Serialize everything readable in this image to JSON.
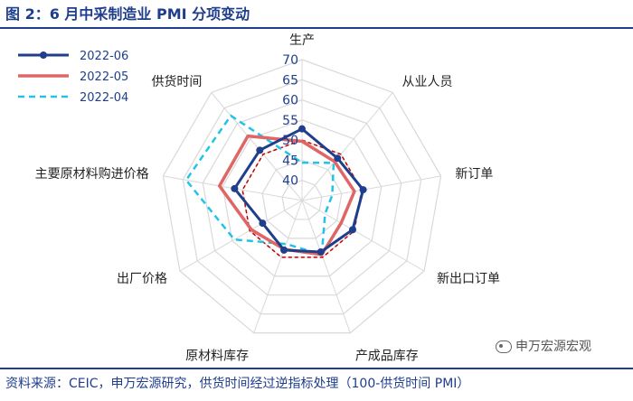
{
  "header": {
    "title": "图 2：6 月中采制造业 PMI 分项变动"
  },
  "footer": {
    "source": "资料来源：CEIC，申万宏源研究，供货时间经过逆指标处理（100-供货时间 PMI）",
    "watermark": "申万宏源宏观"
  },
  "colors": {
    "series_2022_06": "#1f3e8c",
    "series_2022_05": "#e06666",
    "series_2022_04": "#22c3e6",
    "series_benchmark": "#c00000",
    "grid": "#d9d9d9",
    "accent": "#1f3e8c"
  },
  "chart_data": {
    "type": "radar",
    "title": "6 月中采制造业 PMI 分项变动",
    "axes": [
      "生产",
      "从业人员",
      "新订单",
      "新出口订单",
      "产成品库存",
      "原材料库存",
      "出厂价格",
      "主要原材料购进价格",
      "供货时间"
    ],
    "ticks": [
      40,
      45,
      50,
      55,
      60,
      65,
      70
    ],
    "rlim": [
      35,
      70
    ],
    "grid": true,
    "legend_position": "top-left",
    "series": [
      {
        "name": "2022-06",
        "style": "solid-markers",
        "values": [
          52.8,
          48.7,
          50.4,
          49.5,
          48.6,
          48.1,
          46.3,
          52.0,
          51.3
        ]
      },
      {
        "name": "2022-05",
        "style": "solid-thick",
        "values": [
          49.7,
          47.6,
          48.2,
          46.2,
          49.3,
          47.9,
          49.5,
          55.8,
          55.9
        ]
      },
      {
        "name": "2022-04",
        "style": "dashed",
        "values": [
          44.4,
          47.2,
          42.6,
          41.6,
          49.3,
          46.5,
          54.4,
          64.2,
          62.5
        ]
      },
      {
        "name": "",
        "style": "dashed-thin",
        "values": [
          50,
          50,
          50,
          50,
          50,
          50,
          50,
          50,
          50
        ]
      }
    ]
  }
}
